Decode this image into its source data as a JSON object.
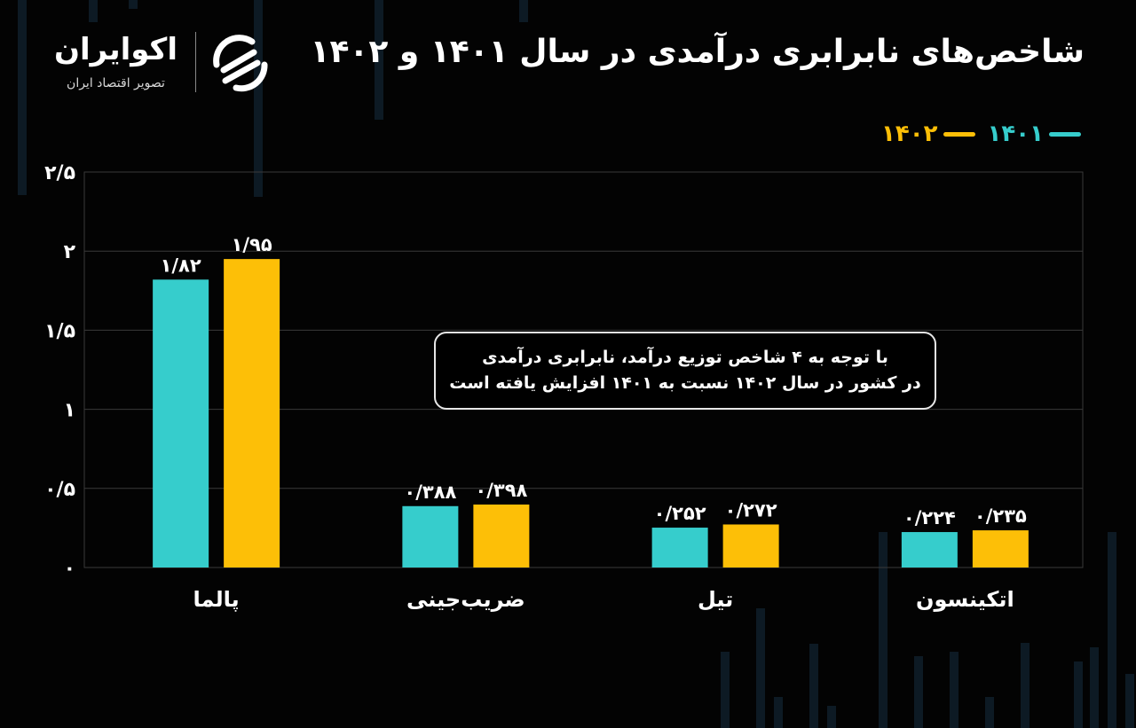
{
  "brand": {
    "name": "اکوایران",
    "tagline": "تصویر اقتصاد ایران"
  },
  "title": "شاخص‌های نابرابری درآمدی در سال ۱۴۰۱ و ۱۴۰۲",
  "colors": {
    "background": "#030303",
    "series_1401": "#36cdcc",
    "series_1402": "#fdbf07",
    "grid": "#3a3a3a",
    "text": "#ffffff"
  },
  "note": {
    "line1": "با توجه به ۴ شاخص توزیع درآمد، نابرابری درآمدی",
    "line2": "در کشور در سال ۱۴۰۲ نسبت به ۱۴۰۱ افزایش یافته است"
  },
  "chart_data": {
    "type": "bar",
    "title": "شاخص‌های نابرابری درآمدی در سال ۱۴۰۱ و ۱۴۰۲",
    "categories": [
      "پالما",
      "ضریب‌جینی",
      "تیل",
      "اتکینسون"
    ],
    "series": [
      {
        "name": "۱۴۰۱",
        "color": "#36cdcc",
        "values": [
          1.82,
          0.388,
          0.252,
          0.224
        ],
        "labels": [
          "۱/۸۲",
          "۰/۳۸۸",
          "۰/۲۵۲",
          "۰/۲۲۴"
        ]
      },
      {
        "name": "۱۴۰۲",
        "color": "#fdbf07",
        "values": [
          1.95,
          0.398,
          0.272,
          0.235
        ],
        "labels": [
          "۱/۹۵",
          "۰/۳۹۸",
          "۰/۲۷۲",
          "۰/۲۳۵"
        ]
      }
    ],
    "yticks": [
      0,
      0.5,
      1,
      1.5,
      2,
      2.5
    ],
    "ytick_labels": [
      "۰",
      "۰/۵",
      "۱",
      "۱/۵",
      "۲",
      "۲/۵"
    ],
    "ylim": [
      0,
      2.5
    ],
    "grid": true,
    "legend": "top-right"
  }
}
